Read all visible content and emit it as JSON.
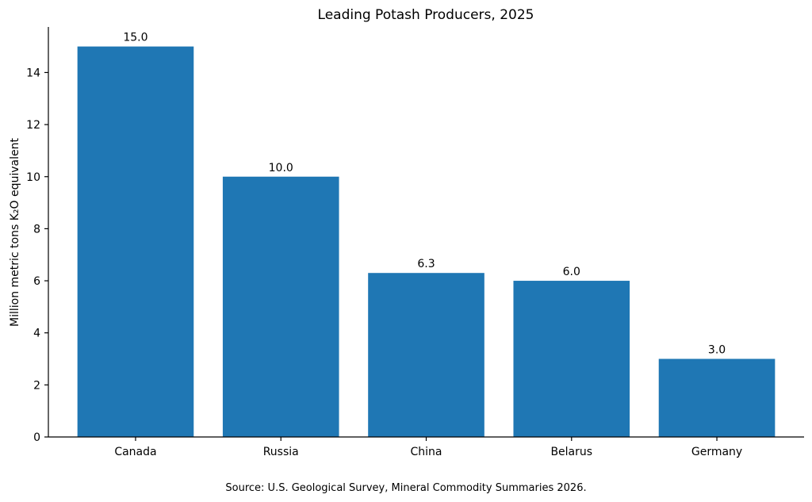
{
  "chart_data": {
    "type": "bar",
    "title": "Leading Potash Producers, 2025",
    "xlabel": "",
    "ylabel": "Million metric tons K₂O equivalent",
    "categories": [
      "Canada",
      "Russia",
      "China",
      "Belarus",
      "Germany"
    ],
    "values": [
      15.0,
      10.0,
      6.3,
      6.0,
      3.0
    ],
    "data_labels": [
      "15.0",
      "10.0",
      "6.3",
      "6.0",
      "3.0"
    ],
    "ylim": [
      0,
      15.75
    ],
    "yticks": [
      0,
      2,
      4,
      6,
      8,
      10,
      12,
      14
    ],
    "grid": false,
    "bar_color": "#1f77b4",
    "source_note": "Source: U.S. Geological Survey, Mineral Commodity Summaries 2026."
  }
}
